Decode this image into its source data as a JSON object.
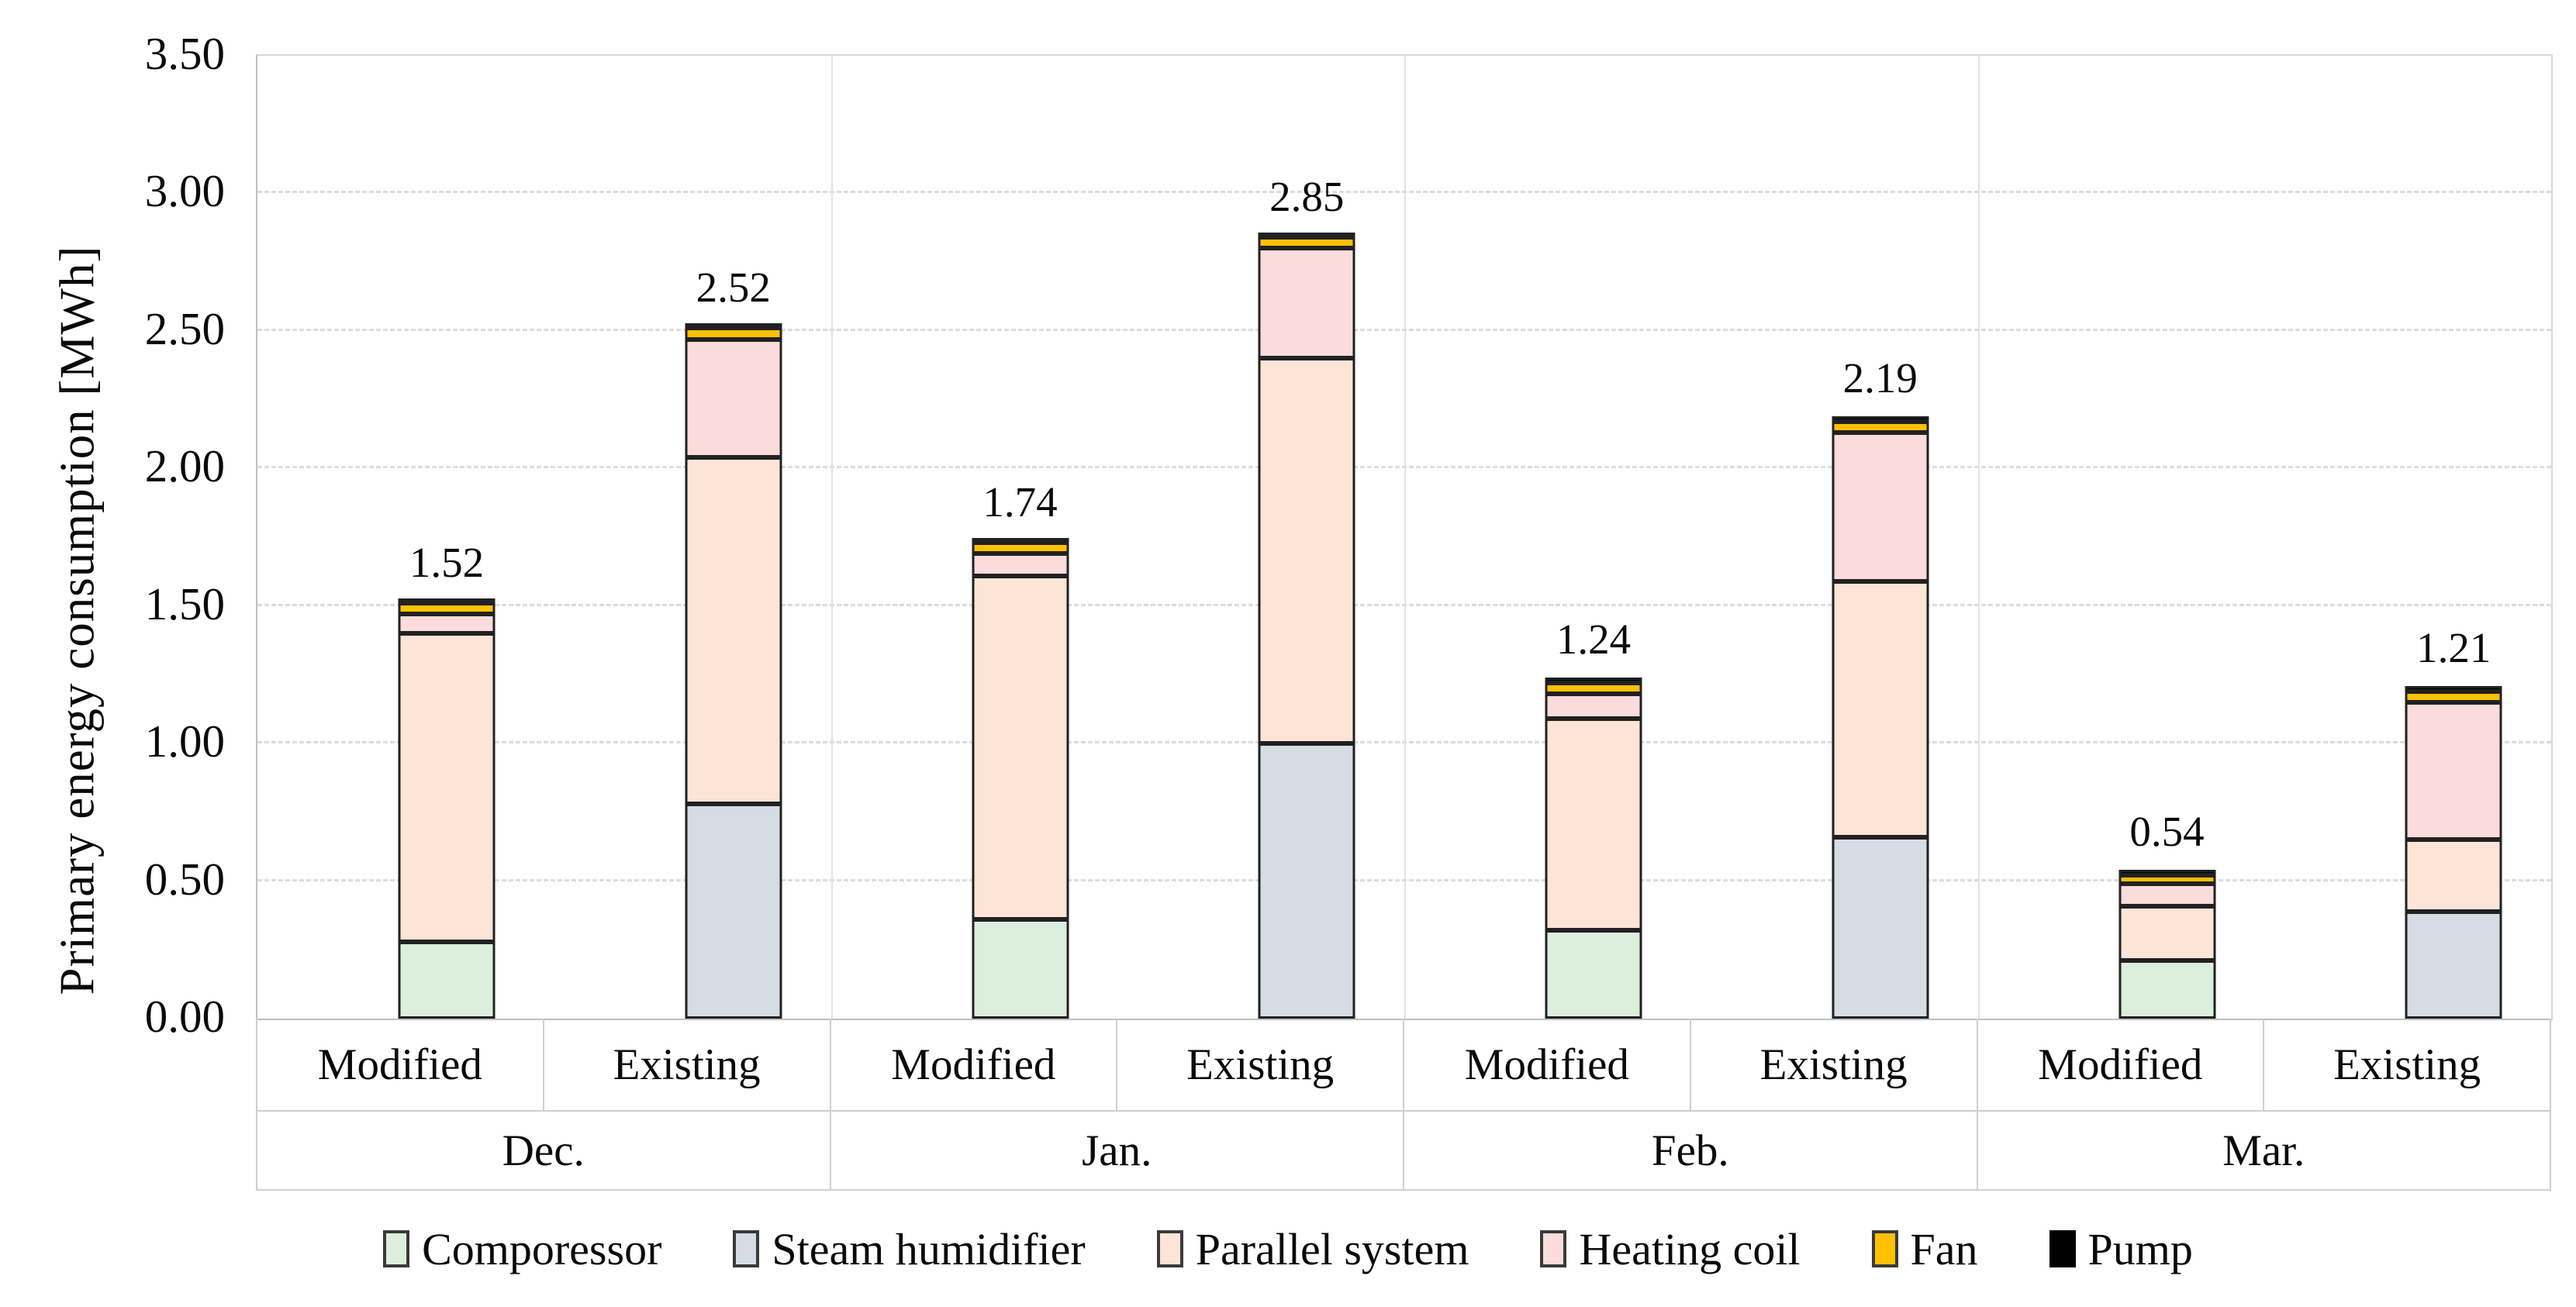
{
  "chart_data": {
    "type": "bar",
    "stacked": true,
    "title": "",
    "ylabel": "Primary energy consumption [MWh]",
    "ylim": [
      0,
      3.5
    ],
    "grid": "horizontal-dashed",
    "legend_position": "bottom",
    "y_ticks": [
      "0.00",
      "0.50",
      "1.00",
      "1.50",
      "2.00",
      "2.50",
      "3.00",
      "3.50"
    ],
    "months": [
      "Dec.",
      "Jan.",
      "Feb.",
      "Mar."
    ],
    "scenarios": [
      "Modified",
      "Existing"
    ],
    "bar_order": [
      "Dec. Modified",
      "Dec. Existing",
      "Jan. Modified",
      "Jan. Existing",
      "Feb. Modified",
      "Feb. Existing",
      "Mar. Modified",
      "Mar. Existing"
    ],
    "series": [
      {
        "name": "Comporessor",
        "color": "#DCEEDC",
        "values": [
          0.28,
          0,
          0.36,
          0,
          0.32,
          0,
          0.21,
          0
        ]
      },
      {
        "name": "Steam humidifier",
        "color": "#D5DCE4",
        "values": [
          0,
          0.78,
          0,
          1.0,
          0,
          0.66,
          0,
          0.39
        ]
      },
      {
        "name": "Parallel system",
        "color": "#FCE4D6",
        "values": [
          1.12,
          1.26,
          1.25,
          1.4,
          0.77,
          0.93,
          0.2,
          0.26
        ]
      },
      {
        "name": "Heating coil",
        "color": "#FBDBDC",
        "values": [
          0.07,
          0.43,
          0.08,
          0.4,
          0.09,
          0.54,
          0.08,
          0.5
        ]
      },
      {
        "name": "Fan",
        "color": "#FFC000",
        "values": [
          0.04,
          0.04,
          0.04,
          0.04,
          0.04,
          0.04,
          0.03,
          0.04
        ]
      },
      {
        "name": "Pump",
        "color": "#000000",
        "values": [
          0.01,
          0.01,
          0.01,
          0.01,
          0.02,
          0.02,
          0.02,
          0.02
        ]
      }
    ],
    "totals": [
      "1.52",
      "2.52",
      "1.74",
      "2.85",
      "1.24",
      "2.19",
      "0.54",
      "1.21"
    ]
  }
}
